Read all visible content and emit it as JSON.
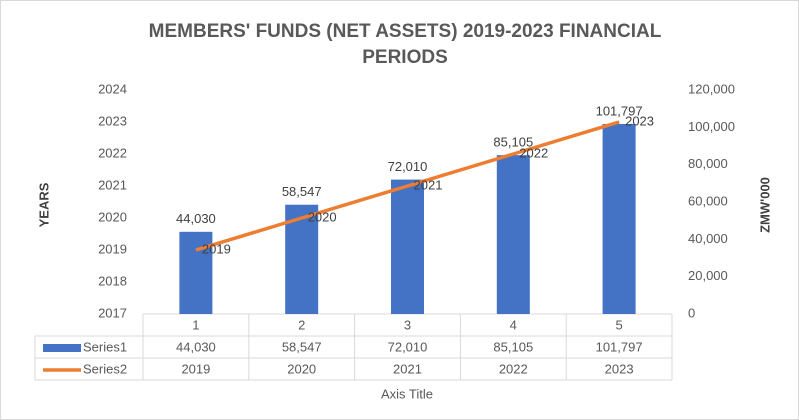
{
  "chart_data": {
    "type": "bar-line",
    "title": "MEMBERS' FUNDS (NET ASSETS) 2019-2023 FINANCIAL PERIODS",
    "ylabel": "YEARS",
    "y2label": "ZMW'000",
    "xlabel": "Axis Title",
    "categories": [
      "1",
      "2",
      "3",
      "4",
      "5"
    ],
    "series": [
      {
        "name": "Series1",
        "type": "bar",
        "axis": "y2",
        "color": "#4472c4",
        "values": [
          44030,
          58547,
          72010,
          85105,
          101797
        ],
        "value_labels": [
          "44,030",
          "58,547",
          "72,010",
          "85,105",
          "101,797"
        ]
      },
      {
        "name": "Series2",
        "type": "line",
        "axis": "y",
        "color": "#ed7d31",
        "values": [
          2019,
          2020,
          2021,
          2022,
          2023
        ]
      }
    ],
    "ylim": [
      2017,
      2024
    ],
    "yticks": [
      2017,
      2018,
      2019,
      2020,
      2021,
      2022,
      2023,
      2024
    ],
    "y2lim": [
      0,
      120000
    ],
    "y2ticks": [
      0,
      {
        "value": 20000,
        "label": "20,000"
      },
      {
        "value": 40000,
        "label": "40,000"
      },
      {
        "value": 60000,
        "label": "60,000"
      },
      {
        "value": 80000,
        "label": "80,000"
      },
      {
        "value": 100000,
        "label": "100,000"
      },
      {
        "value": 120000,
        "label": "120,000"
      }
    ],
    "data_table": true
  }
}
